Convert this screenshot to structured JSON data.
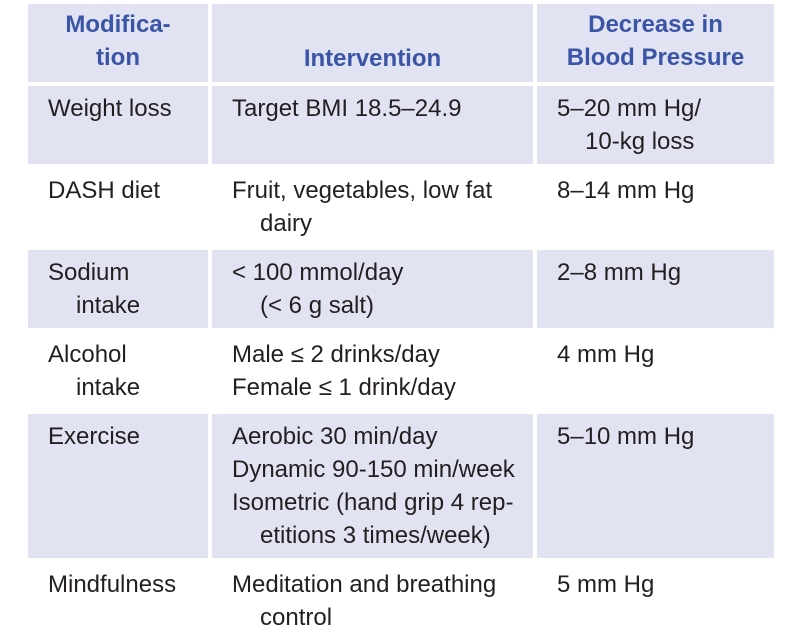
{
  "header": {
    "modification": [
      "Modifica-",
      "tion"
    ],
    "intervention": "Intervention",
    "decrease": [
      "Decrease in",
      "Blood Pressure"
    ]
  },
  "rows": [
    {
      "modification": [
        "Weight loss"
      ],
      "intervention": [
        "Target BMI 18.5–24.9"
      ],
      "decrease": [
        "5–20 mm Hg/",
        "10-kg loss"
      ]
    },
    {
      "modification": [
        "DASH diet"
      ],
      "intervention": [
        "Fruit, vegetables, low fat",
        "dairy"
      ],
      "decrease": [
        "8–14 mm Hg"
      ]
    },
    {
      "modification": [
        "Sodium",
        "intake"
      ],
      "intervention": [
        "< 100 mmol/day",
        "(< 6 g salt)"
      ],
      "decrease": [
        "2–8 mm Hg"
      ]
    },
    {
      "modification": [
        "Alcohol",
        "intake"
      ],
      "intervention": [
        "Male ≤ 2 drinks/day",
        "Female ≤ 1 drink/day"
      ],
      "decrease": [
        "4 mm Hg"
      ]
    },
    {
      "modification": [
        "Exercise"
      ],
      "intervention": [
        "Aerobic 30 min/day",
        "Dynamic 90-150 min/week",
        "Isometric (hand grip 4 rep-",
        "etitions 3 times/week)"
      ],
      "decrease": [
        "5–10 mm Hg"
      ]
    },
    {
      "modification": [
        "Mindfulness"
      ],
      "intervention": [
        "Meditation and breathing",
        "control"
      ],
      "decrease": [
        "5 mm Hg"
      ]
    }
  ]
}
